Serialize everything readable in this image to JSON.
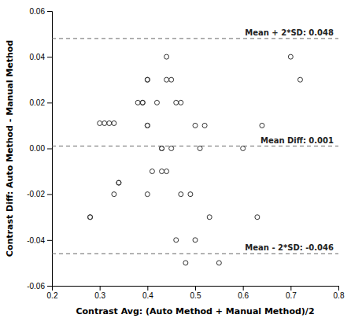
{
  "chart_data": {
    "type": "scatter",
    "xlabel": "Contrast Avg: (Auto Method + Manual Method)/2",
    "ylabel": "Contrast Diff: Auto Method - Manual Method",
    "color": "#333333",
    "marker": "open-circle",
    "x": [
      0.28,
      0.28,
      0.3,
      0.31,
      0.32,
      0.33,
      0.33,
      0.34,
      0.34,
      0.38,
      0.39,
      0.39,
      0.4,
      0.4,
      0.4,
      0.4,
      0.4,
      0.41,
      0.42,
      0.43,
      0.43,
      0.43,
      0.44,
      0.44,
      0.44,
      0.45,
      0.45,
      0.46,
      0.46,
      0.47,
      0.47,
      0.48,
      0.49,
      0.5,
      0.5,
      0.51,
      0.52,
      0.53,
      0.55,
      0.6,
      0.63,
      0.64,
      0.7,
      0.72
    ],
    "values": [
      -0.03,
      -0.03,
      0.011,
      0.011,
      0.011,
      -0.02,
      0.011,
      -0.015,
      -0.015,
      0.02,
      0.02,
      0.02,
      -0.02,
      0.01,
      0.01,
      0.03,
      0.03,
      -0.01,
      0.02,
      0.0,
      0.0,
      -0.01,
      0.04,
      0.03,
      -0.01,
      0.0,
      0.03,
      -0.04,
      0.02,
      -0.02,
      0.02,
      -0.05,
      -0.02,
      -0.04,
      0.01,
      0.0,
      0.01,
      -0.03,
      -0.05,
      0.0,
      -0.03,
      0.01,
      0.04,
      0.03
    ],
    "annotations": [
      {
        "text": "Mean Diff: 0.001",
        "y": 0.001,
        "line_style": "dashed",
        "color": "#666666"
      },
      {
        "text": "Mean + 2*SD: 0.048",
        "y": 0.048,
        "line_style": "dashed",
        "color": "#666666"
      },
      {
        "text": "Mean - 2*SD: -0.046",
        "y": -0.046,
        "line_style": "dashed",
        "color": "#666666"
      }
    ],
    "xlim": [
      0.2,
      0.8
    ],
    "ylim": [
      -0.06,
      0.06
    ],
    "xticks": [
      0.2,
      0.3,
      0.4,
      0.5,
      0.6,
      0.7,
      0.8
    ],
    "yticks": [
      -0.06,
      -0.04,
      -0.02,
      {
        "value": 0.0,
        "label": "0.00"
      },
      0.02,
      0.04,
      0.06
    ],
    "grid": false
  }
}
